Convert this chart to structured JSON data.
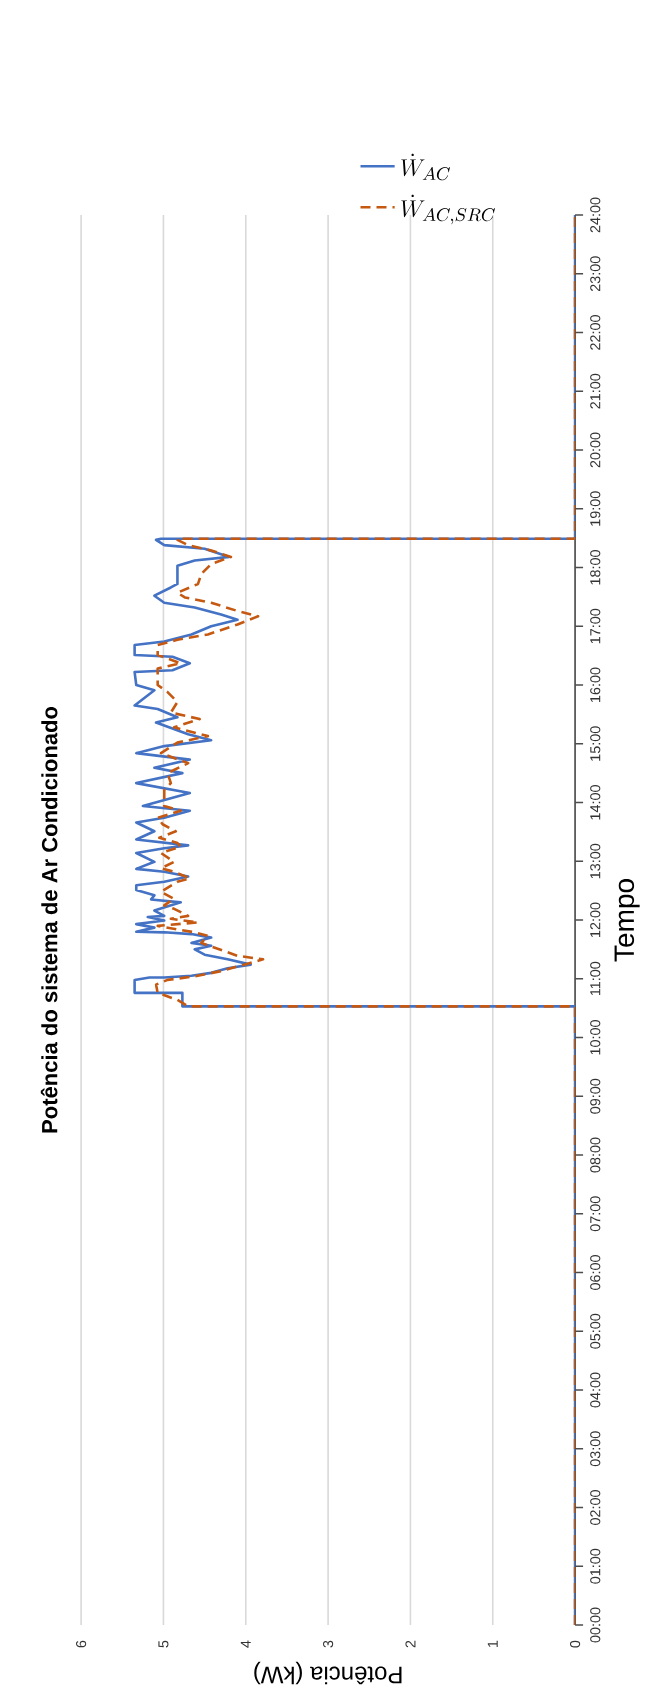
{
  "chart_data": {
    "type": "line",
    "title": "Potência do sistema de Ar Condicionado",
    "xlabel": "Potência (kW)",
    "ylabel": "Tempo",
    "xlim": [
      6,
      0
    ],
    "xticks": [
      0,
      1,
      2,
      3,
      4,
      5,
      6
    ],
    "ylim": [
      0,
      24
    ],
    "yticks": [
      {
        "value": 0,
        "label": "00:00"
      },
      {
        "value": 1,
        "label": "01:00"
      },
      {
        "value": 2,
        "label": "02:00"
      },
      {
        "value": 3,
        "label": "03:00"
      },
      {
        "value": 4,
        "label": "04:00"
      },
      {
        "value": 5,
        "label": "05:00"
      },
      {
        "value": 6,
        "label": "06:00"
      },
      {
        "value": 7,
        "label": "07:00"
      },
      {
        "value": 8,
        "label": "08:00"
      },
      {
        "value": 9,
        "label": "09:00"
      },
      {
        "value": 10,
        "label": "10:00"
      },
      {
        "value": 11,
        "label": "11:00"
      },
      {
        "value": 12,
        "label": "12:00"
      },
      {
        "value": 13,
        "label": "13:00"
      },
      {
        "value": 14,
        "label": "14:00"
      },
      {
        "value": 15,
        "label": "15:00"
      },
      {
        "value": 16,
        "label": "16:00"
      },
      {
        "value": 17,
        "label": "17:00"
      },
      {
        "value": 18,
        "label": "18:00"
      },
      {
        "value": 19,
        "label": "19:00"
      },
      {
        "value": 20,
        "label": "20:00"
      },
      {
        "value": 21,
        "label": "21:00"
      },
      {
        "value": 22,
        "label": "22:00"
      },
      {
        "value": 23,
        "label": "23:00"
      },
      {
        "value": 24,
        "label": "24:00"
      }
    ],
    "grid": "x",
    "legend": "top",
    "series": [
      {
        "name": "\\dot{W}_{AC}",
        "color": "#4472c4",
        "line_style": "solid",
        "values": [
          0,
          10.53,
          10.53,
          10.76,
          10.76,
          10.98,
          11.02,
          11.02,
          11.05,
          11.1,
          11.18,
          11.24,
          11.33,
          11.41,
          11.5,
          11.56,
          11.61,
          11.7,
          11.76,
          11.79,
          11.8,
          11.87,
          11.93,
          11.99,
          12.05,
          12.07,
          12.16,
          12.3,
          12.35,
          12.42,
          12.51,
          12.59,
          12.65,
          12.74,
          12.82,
          12.87,
          12.99,
          13.14,
          13.22,
          13.27,
          13.37,
          13.51,
          13.66,
          13.74,
          13.86,
          13.94,
          14.16,
          14.33,
          14.5,
          14.59,
          14.73,
          14.84,
          14.96,
          15.06,
          15.16,
          15.36,
          15.45,
          15.59,
          15.65,
          15.91,
          16.0,
          16.22,
          16.25,
          16.37,
          16.48,
          16.51,
          16.68,
          16.74,
          16.86,
          17.0,
          17.11,
          17.2,
          17.32,
          17.4,
          17.52,
          17.66,
          17.72,
          18.03,
          18.12,
          18.18,
          18.32,
          18.38,
          18.47,
          18.49,
          18.49,
          24
        ],
        "x": [
          0,
          0,
          4.77,
          4.77,
          5.35,
          5.35,
          5.17,
          4.99,
          4.66,
          4.42,
          4.22,
          3.94,
          4.22,
          4.5,
          4.62,
          4.42,
          4.66,
          4.42,
          4.66,
          4.99,
          5.33,
          5.11,
          5.33,
          4.99,
          5.19,
          4.99,
          5.11,
          4.79,
          5.15,
          5.11,
          5.33,
          5.33,
          4.99,
          4.7,
          4.99,
          5.33,
          5.11,
          5.33,
          4.99,
          4.7,
          5.33,
          5.11,
          5.33,
          4.99,
          4.68,
          5.25,
          4.68,
          5.33,
          4.77,
          5.11,
          4.68,
          5.33,
          4.99,
          4.42,
          4.7,
          5.09,
          4.83,
          5.07,
          5.35,
          5.11,
          5.33,
          5.35,
          4.89,
          4.68,
          4.89,
          5.35,
          5.35,
          4.99,
          4.66,
          4.42,
          4.1,
          4.3,
          4.62,
          4.99,
          5.11,
          4.91,
          4.83,
          4.83,
          4.62,
          4.2,
          4.5,
          4.99,
          5.09,
          5.03,
          0,
          0
        ]
      },
      {
        "name": "\\dot{W}_{AC,SRC}",
        "color": "#c65911",
        "line_style": "dashed",
        "values": [
          0,
          10.53,
          10.53,
          10.64,
          10.76,
          10.9,
          10.98,
          11.04,
          11.13,
          11.24,
          11.33,
          11.39,
          11.47,
          11.61,
          11.73,
          11.79,
          11.84,
          11.9,
          11.96,
          12.02,
          12.07,
          12.19,
          12.25,
          12.36,
          12.48,
          12.65,
          12.71,
          12.82,
          12.88,
          12.99,
          13.14,
          13.25,
          13.31,
          13.4,
          13.51,
          13.63,
          13.74,
          13.86,
          13.94,
          14.21,
          14.33,
          14.5,
          14.67,
          14.84,
          15.02,
          15.13,
          15.28,
          15.42,
          15.53,
          15.71,
          15.88,
          16.0,
          16.28,
          16.37,
          16.51,
          16.68,
          16.77,
          16.86,
          17.03,
          17.17,
          17.26,
          17.4,
          17.49,
          17.57,
          17.72,
          17.89,
          18.06,
          18.18,
          18.29,
          18.38,
          18.47,
          18.49,
          18.49,
          24
        ],
        "x": [
          0,
          0,
          4.7,
          4.83,
          5.07,
          5.09,
          4.95,
          4.62,
          4.3,
          4.02,
          3.79,
          4.1,
          4.26,
          4.54,
          4.46,
          4.62,
          4.83,
          5.07,
          4.58,
          4.91,
          4.7,
          4.87,
          4.99,
          4.87,
          5.03,
          4.83,
          4.68,
          4.87,
          5.03,
          4.87,
          5.03,
          4.79,
          4.83,
          5.05,
          4.85,
          5.01,
          5.07,
          4.79,
          4.99,
          4.99,
          4.91,
          4.95,
          4.7,
          5.03,
          4.83,
          4.46,
          4.87,
          4.56,
          4.91,
          4.83,
          4.95,
          5.07,
          5.07,
          4.79,
          5.07,
          5.07,
          4.83,
          4.46,
          4.1,
          3.85,
          4.1,
          4.42,
          4.74,
          4.83,
          4.58,
          4.54,
          4.42,
          4.18,
          4.42,
          4.7,
          4.83,
          4.83,
          0,
          0
        ]
      }
    ]
  }
}
